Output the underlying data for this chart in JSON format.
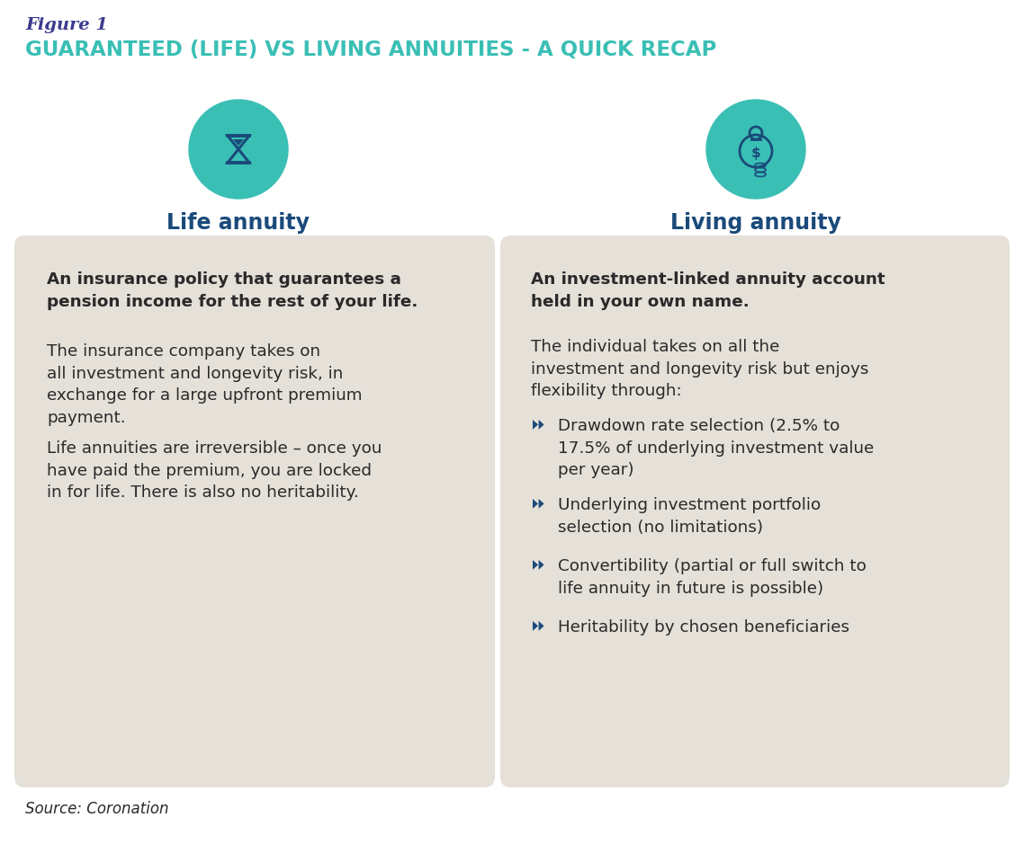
{
  "figure_label": "Figure 1",
  "figure_label_color": "#3b3b8f",
  "title": "GUARANTEED (LIFE) VS LIVING ANNUITIES - A QUICK RECAP",
  "title_color": "#3abfb5",
  "bg_color": "#ffffff",
  "card_bg_color": "#e5e0d8",
  "left_heading": "Life annuity",
  "right_heading": "Living annuity",
  "heading_color": "#1a4a7a",
  "circle_color": "#3abfb5",
  "icon_color": "#1a4a7a",
  "left_bold": "An insurance policy that guarantees a\npension income for the rest of your life.",
  "left_para1": "The insurance company takes on\nall investment and longevity risk, in\nexchange for a large upfront premium\npayment.",
  "left_para2": "Life annuities are irreversible – once you\nhave paid the premium, you are locked\nin for life. There is also no heritability.",
  "right_bold": "An investment-linked annuity account\nheld in your own name.",
  "right_intro": "The individual takes on all the\ninvestment and longevity risk but enjoys\nflexibility through:",
  "right_bullets": [
    "Drawdown rate selection (2.5% to\n17.5% of underlying investment value\nper year)",
    "Underlying investment portfolio\nselection (no limitations)",
    "Convertibility (partial or full switch to\nlife annuity in future is possible)",
    "Heritability by chosen beneficiaries"
  ],
  "source_text": "Source: Coronation",
  "text_color": "#2a2a2a",
  "bullet_arrow_color": "#1a4a7a"
}
